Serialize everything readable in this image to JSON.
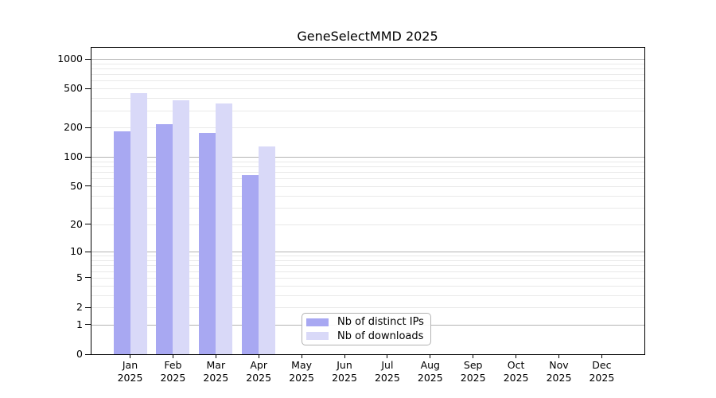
{
  "figure": {
    "title": "GeneSelectMMD 2025"
  },
  "chart_data": {
    "type": "bar",
    "title": "GeneSelectMMD 2025",
    "year": "2025",
    "months": [
      "Jan",
      "Feb",
      "Mar",
      "Apr",
      "May",
      "Jun",
      "Jul",
      "Aug",
      "Sep",
      "Oct",
      "Nov",
      "Dec"
    ],
    "categories": [
      "Jan 2025",
      "Feb 2025",
      "Mar 2025",
      "Apr 2025",
      "May 2025",
      "Jun 2025",
      "Jul 2025",
      "Aug 2025",
      "Sep 2025",
      "Oct 2025",
      "Nov 2025",
      "Dec 2025"
    ],
    "series": [
      {
        "name": "Nb of distinct IPs",
        "color": "#a8a8f2",
        "values": [
          184,
          218,
          175,
          65,
          null,
          null,
          null,
          null,
          null,
          null,
          null,
          null
        ]
      },
      {
        "name": "Nb of downloads",
        "color": "#d9d9f8",
        "values": [
          448,
          380,
          352,
          128,
          null,
          null,
          null,
          null,
          null,
          null,
          null,
          null
        ]
      }
    ],
    "xlabel": "",
    "ylabel": "",
    "y_scale": "log10(value+1)",
    "y_ticks": [
      0,
      1,
      2,
      5,
      10,
      20,
      50,
      100,
      200,
      500,
      1000
    ],
    "y_major_gridlines": [
      1,
      10,
      100,
      1000
    ],
    "y_minor_gridlines": [
      2,
      3,
      4,
      5,
      6,
      7,
      8,
      9,
      20,
      30,
      40,
      50,
      60,
      70,
      80,
      90,
      200,
      300,
      400,
      500,
      600,
      700,
      800,
      900
    ],
    "ylim": [
      0,
      1350
    ],
    "grid": true,
    "legend_position": "inside lower-center",
    "colors": {
      "major_grid": "#b4b4b4",
      "minor_grid": "#e9e9e9",
      "spine": "#000000",
      "text": "#000000",
      "legend_border": "#b3b3b3",
      "background": "#ffffff"
    }
  }
}
